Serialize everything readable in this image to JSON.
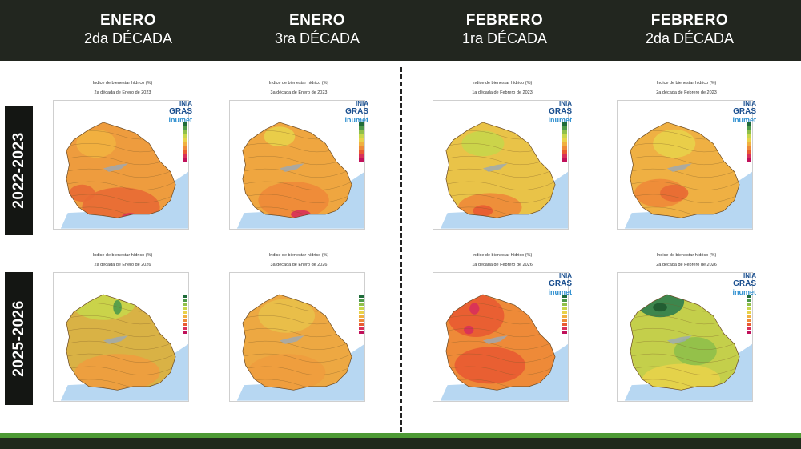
{
  "header": {
    "columns": [
      {
        "month": "ENERO",
        "decade": "2da DÉCADA"
      },
      {
        "month": "ENERO",
        "decade": "3ra DÉCADA"
      },
      {
        "month": "FEBRERO",
        "decade": "1ra DÉCADA"
      },
      {
        "month": "FEBRERO",
        "decade": "2da DÉCADA"
      }
    ]
  },
  "seasons": [
    "2022-2023",
    "2025-2026"
  ],
  "logos": {
    "inia": "INIA",
    "gras": "GRAS",
    "inumet": "inumet"
  },
  "panels": [
    {
      "title": "Indice de bienestar hídrico (%)",
      "subtitle": "2a década de Enero de 2023",
      "palette": "dry",
      "show_logo": true
    },
    {
      "title": "Indice de bienestar hídrico (%)",
      "subtitle": "3a década de Enero de 2023",
      "palette": "dry2",
      "show_logo": true
    },
    {
      "title": "Indice de bienestar hídrico (%)",
      "subtitle": "1a década de Febrero de 2023",
      "palette": "mid",
      "show_logo": true
    },
    {
      "title": "Indice de bienestar hídrico (%)",
      "subtitle": "2a década de Febrero de 2023",
      "palette": "mid2",
      "show_logo": true
    },
    {
      "title": "Indice de bienestar hídrico (%)",
      "subtitle": "2a década de Enero de 2026",
      "palette": "wet",
      "show_logo": false
    },
    {
      "title": "Indice de bienestar hídrico (%)",
      "subtitle": "3a década de Enero de 2026",
      "palette": "mid3",
      "show_logo": false
    },
    {
      "title": "Indice de bienestar hídrico (%)",
      "subtitle": "1a década de Febrero de 2026",
      "palette": "dry3",
      "show_logo": true
    },
    {
      "title": "Indice de bienestar hídrico (%)",
      "subtitle": "2a década de Febrero de 2026",
      "palette": "wet2",
      "show_logo": true
    }
  ],
  "colors": {
    "header_bg": "#22261f",
    "footer_green": "#4d9a35",
    "water": "#b7d7f2",
    "legend": [
      "#1f6b3a",
      "#4e9a4a",
      "#8fbf4a",
      "#c8d64a",
      "#e8d24a",
      "#f0b040",
      "#ee8a38",
      "#e85a32",
      "#d8305a",
      "#c0105a"
    ]
  }
}
